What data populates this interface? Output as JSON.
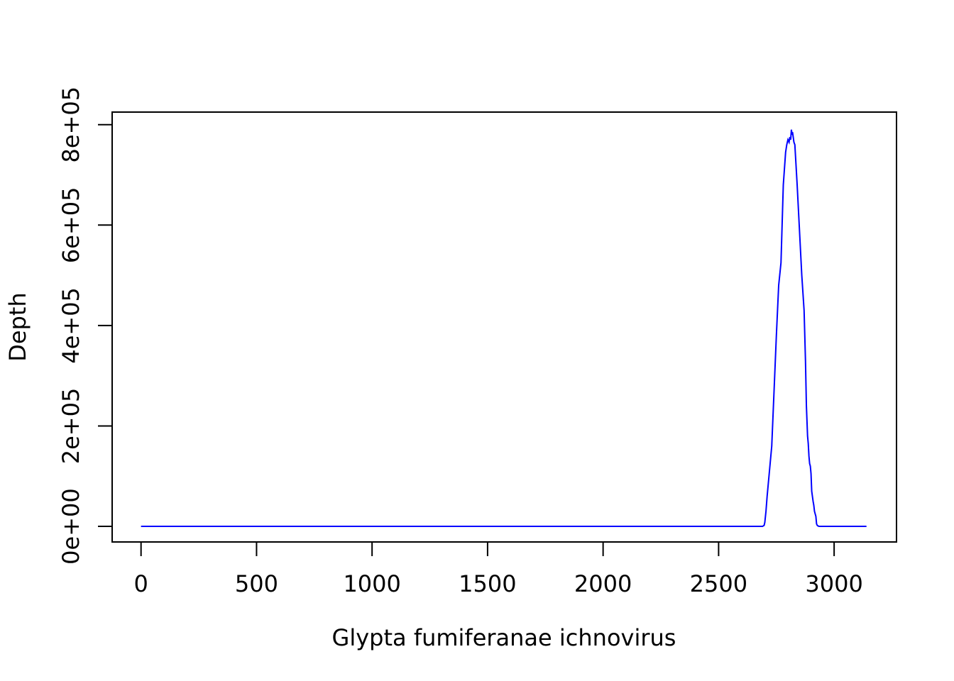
{
  "chart_data": {
    "type": "line",
    "title": "",
    "xlabel": "Glypta fumiferanae ichnovirus",
    "ylabel": "Depth",
    "xlim": [
      -125,
      3270
    ],
    "ylim": [
      -31000,
      825000
    ],
    "x_ticks": [
      0,
      500,
      1000,
      1500,
      2000,
      2500,
      3000
    ],
    "x_tick_labels": [
      "0",
      "500",
      "1000",
      "1500",
      "2000",
      "2500",
      "3000"
    ],
    "y_ticks": [
      0,
      200000,
      400000,
      600000,
      800000
    ],
    "y_tick_labels": [
      "0e+00",
      "2e+05",
      "4e+05",
      "6e+05",
      "8e+05"
    ],
    "grid": false,
    "legend": "none",
    "series": [
      {
        "color": "#0000ff",
        "x": [
          0,
          500,
          1000,
          1500,
          2000,
          2500,
          2690,
          2697,
          2700,
          2705,
          2710,
          2720,
          2730,
          2740,
          2750,
          2760,
          2770,
          2780,
          2790,
          2795,
          2800,
          2805,
          2808,
          2812,
          2815,
          2818,
          2820,
          2823,
          2826,
          2830,
          2835,
          2840,
          2850,
          2860,
          2870,
          2876,
          2880,
          2885,
          2888,
          2891,
          2894,
          2897,
          2900,
          2903,
          2906,
          2909,
          2912,
          2915,
          2918,
          2921,
          2924,
          2927,
          2930,
          2935,
          2940,
          2950,
          3000,
          3140
        ],
        "y": [
          0,
          0,
          0,
          0,
          0,
          0,
          0,
          2000,
          8000,
          30000,
          60000,
          110000,
          160000,
          270000,
          380000,
          480000,
          525000,
          680000,
          745000,
          760000,
          770000,
          765000,
          775000,
          770000,
          790000,
          780000,
          785000,
          775000,
          765000,
          760000,
          720000,
          680000,
          590000,
          500000,
          430000,
          330000,
          240000,
          180000,
          165000,
          140000,
          125000,
          120000,
          105000,
          70000,
          60000,
          50000,
          42000,
          30000,
          25000,
          20000,
          5000,
          2000,
          1000,
          0,
          0,
          0,
          0,
          0
        ]
      }
    ]
  }
}
